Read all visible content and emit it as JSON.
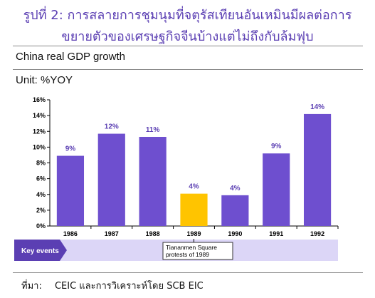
{
  "heading": {
    "line1": "รูปที่ 2: การสลายการชุมนุมที่จตุรัสเทียนอันเหมินมีผลต่อการ",
    "line2": "ขยายตัวของเศรษฐกิจจีนบ้างแต่ไม่ถึงกับล้มฟุบ"
  },
  "subtitle": "China real GDP growth",
  "unit_label": "Unit: %YOY",
  "source": {
    "label": "ที่มา:",
    "text": "CEIC และการวิเคราะห์โดย SCB EIC"
  },
  "colors": {
    "bar": "#6e4fcf",
    "highlight": "#ffc400",
    "label_text": "#5b3fb3",
    "band": "#dcd6f7",
    "key_events": "#5b3fb3"
  },
  "key_events": {
    "label": "Key events",
    "note": "Tiananmen Square protests of 1989",
    "year": "1989"
  },
  "chart_data": {
    "type": "bar",
    "categories": [
      "1986",
      "1987",
      "1988",
      "1989",
      "1990",
      "1991",
      "1992"
    ],
    "values": [
      8.9,
      11.7,
      11.3,
      4.1,
      3.9,
      9.2,
      14.2
    ],
    "data_labels": [
      "9%",
      "12%",
      "11%",
      "4%",
      "4%",
      "9%",
      "14%"
    ],
    "highlight": "1989",
    "title": "China real GDP growth",
    "ylabel": "Unit: %YOY",
    "ylim": [
      0,
      16
    ],
    "yticks": [
      0,
      2,
      4,
      6,
      8,
      10,
      12,
      14,
      16
    ],
    "ytick_labels": [
      "0%",
      "2%",
      "4%",
      "6%",
      "8%",
      "10%",
      "12%",
      "14%",
      "16%"
    ],
    "grid": false
  }
}
